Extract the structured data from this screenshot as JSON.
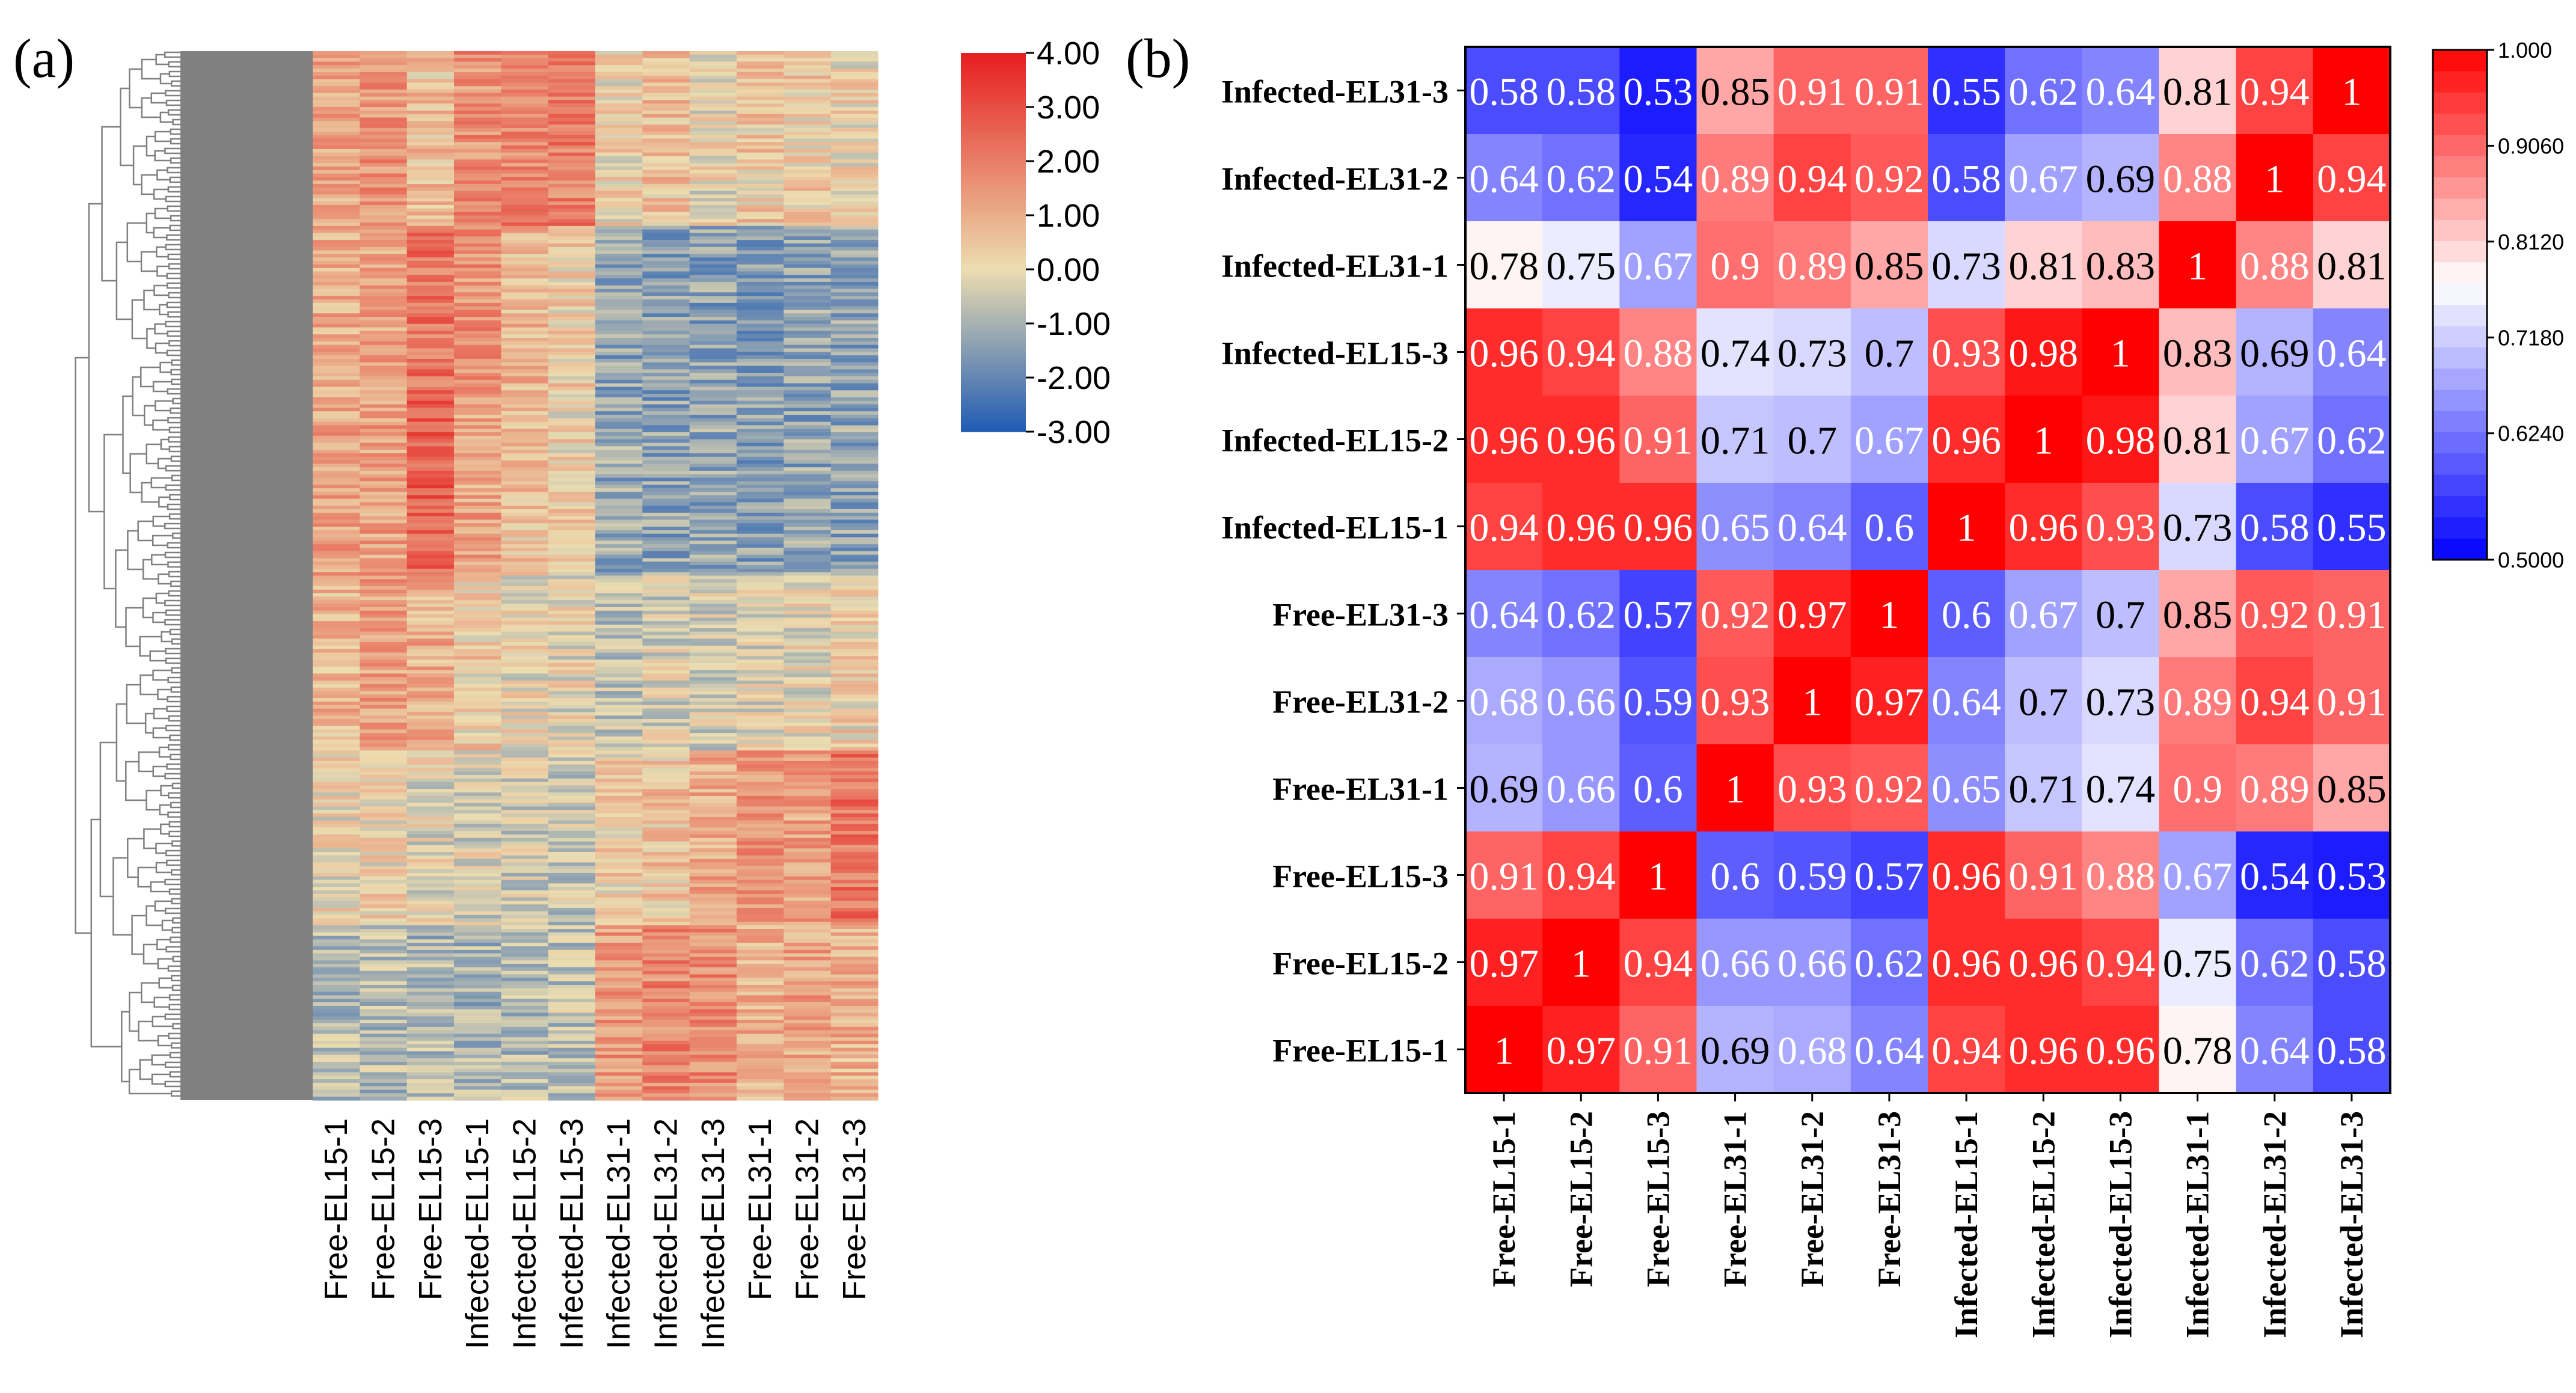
{
  "colors": {
    "heat_low": "#1f5bb4",
    "heat_mid": "#ecddb0",
    "heat_high": "#e61e1e",
    "corr_low": "#0000ff",
    "corr_mid": "#ffffff",
    "corr_high": "#ff0000",
    "dendro": "#808080"
  },
  "chart_data": [
    {
      "type": "heatmap",
      "panel_label": "(a)",
      "title": "",
      "columns": [
        "Free-EL15-1",
        "Free-EL15-2",
        "Free-EL15-3",
        "Infected-EL15-1",
        "Infected-EL15-2",
        "Infected-EL15-3",
        "Infected-EL31-1",
        "Infected-EL31-2",
        "Infected-EL31-3",
        "Free-EL31-1",
        "Free-EL31-2",
        "Free-EL31-3"
      ],
      "row_count": 300,
      "row_dendrogram": true,
      "color_range": [
        -3.0,
        4.0
      ],
      "colorbar_ticks": [
        "4.00",
        "3.00",
        "2.00",
        "1.00",
        "0.00",
        "-1.00",
        "-2.00",
        "-3.00"
      ],
      "colorbar_tick_values": [
        4,
        3,
        2,
        1,
        0,
        -1,
        -2,
        -3
      ],
      "block_means": {
        "row_blocks": 6,
        "values": [
          [
            1.1,
            1.6,
            0.6,
            1.6,
            1.9,
            2.0,
            0.2,
            0.6,
            0.0,
            0.4,
            0.3,
            0.1
          ],
          [
            1.0,
            1.2,
            2.2,
            1.6,
            0.8,
            0.3,
            -1.3,
            -1.4,
            -1.4,
            -1.5,
            -1.3,
            -1.3
          ],
          [
            1.2,
            1.3,
            2.6,
            1.2,
            0.5,
            0.2,
            -1.2,
            -1.3,
            -1.3,
            -1.4,
            -1.3,
            -1.3
          ],
          [
            0.8,
            1.3,
            1.0,
            0.3,
            0.0,
            -0.1,
            -0.6,
            -0.3,
            -0.4,
            -0.2,
            -0.1,
            0.2
          ],
          [
            0.0,
            0.1,
            -0.2,
            -0.3,
            -0.4,
            -0.5,
            0.2,
            0.5,
            1.1,
            1.5,
            1.2,
            2.2
          ],
          [
            -0.8,
            -0.8,
            -0.9,
            -1.0,
            -0.8,
            -0.7,
            1.4,
            1.8,
            1.7,
            1.0,
            1.2,
            0.9
          ]
        ]
      }
    },
    {
      "type": "heatmap",
      "panel_label": "(b)",
      "title": "",
      "x_labels": [
        "Free-EL15-1",
        "Free-EL15-2",
        "Free-EL15-3",
        "Free-EL31-1",
        "Free-EL31-2",
        "Free-EL31-3",
        "Infected-EL15-1",
        "Infected-EL15-2",
        "Infected-EL15-3",
        "Infected-EL31-1",
        "Infected-EL31-2",
        "Infected-EL31-3"
      ],
      "y_labels_top_to_bottom": [
        "Infected-EL31-3",
        "Infected-EL31-2",
        "Infected-EL31-1",
        "Infected-EL15-3",
        "Infected-EL15-2",
        "Infected-EL15-1",
        "Free-EL31-3",
        "Free-EL31-2",
        "Free-EL31-1",
        "Free-EL15-3",
        "Free-EL15-2",
        "Free-EL15-1"
      ],
      "values": [
        [
          0.58,
          0.58,
          0.53,
          0.85,
          0.91,
          0.91,
          0.55,
          0.62,
          0.64,
          0.81,
          0.94,
          1
        ],
        [
          0.64,
          0.62,
          0.54,
          0.89,
          0.94,
          0.92,
          0.58,
          0.67,
          0.69,
          0.88,
          1,
          0.94
        ],
        [
          0.78,
          0.75,
          0.67,
          0.9,
          0.89,
          0.85,
          0.73,
          0.81,
          0.83,
          1,
          0.88,
          0.81
        ],
        [
          0.96,
          0.94,
          0.88,
          0.74,
          0.73,
          0.7,
          0.93,
          0.98,
          1,
          0.83,
          0.69,
          0.64
        ],
        [
          0.96,
          0.96,
          0.91,
          0.71,
          0.7,
          0.67,
          0.96,
          1,
          0.98,
          0.81,
          0.67,
          0.62
        ],
        [
          0.94,
          0.96,
          0.96,
          0.65,
          0.64,
          0.6,
          1,
          0.96,
          0.93,
          0.73,
          0.58,
          0.55
        ],
        [
          0.64,
          0.62,
          0.57,
          0.92,
          0.97,
          1,
          0.6,
          0.67,
          0.7,
          0.85,
          0.92,
          0.91
        ],
        [
          0.68,
          0.66,
          0.59,
          0.93,
          1,
          0.97,
          0.64,
          0.7,
          0.73,
          0.89,
          0.94,
          0.91
        ],
        [
          0.69,
          0.66,
          0.6,
          1,
          0.93,
          0.92,
          0.65,
          0.71,
          0.74,
          0.9,
          0.89,
          0.85
        ],
        [
          0.91,
          0.94,
          1,
          0.6,
          0.59,
          0.57,
          0.96,
          0.91,
          0.88,
          0.67,
          0.54,
          0.53
        ],
        [
          0.97,
          1,
          0.94,
          0.66,
          0.66,
          0.62,
          0.96,
          0.96,
          0.94,
          0.75,
          0.62,
          0.58
        ],
        [
          1,
          0.97,
          0.91,
          0.69,
          0.68,
          0.64,
          0.94,
          0.96,
          0.96,
          0.78,
          0.64,
          0.58
        ]
      ],
      "color_range": [
        0.5,
        1.0
      ],
      "colorbar_ticks": [
        "1.000",
        "0.9060",
        "0.8120",
        "0.7180",
        "0.6240",
        "0.5000"
      ],
      "colorbar_tick_values": [
        1.0,
        0.906,
        0.812,
        0.718,
        0.624,
        0.5
      ]
    }
  ]
}
